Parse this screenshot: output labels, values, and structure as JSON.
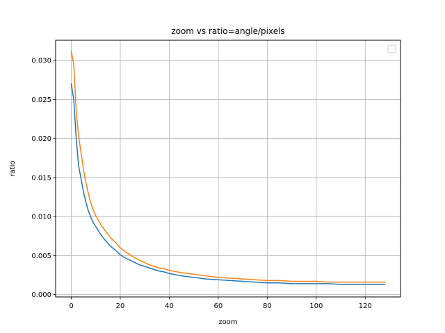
{
  "chart_data": {
    "type": "line",
    "title": "zoom vs ratio=angle/pixels",
    "xlabel": "zoom",
    "ylabel": "ratio",
    "xlim": [
      -6.4,
      134.4
    ],
    "ylim": [
      -0.0003,
      0.0326
    ],
    "x_ticks": [
      0,
      20,
      40,
      60,
      80,
      100,
      120
    ],
    "x_tick_labels": [
      "0",
      "20",
      "40",
      "60",
      "80",
      "100",
      "120"
    ],
    "y_ticks": [
      0.0,
      0.005,
      0.01,
      0.015,
      0.02,
      0.025,
      0.03
    ],
    "y_tick_labels": [
      "0.000",
      "0.005",
      "0.010",
      "0.015",
      "0.020",
      "0.025",
      "0.030"
    ],
    "grid": true,
    "legend": {
      "placement": "upper right",
      "entries": []
    },
    "series": [
      {
        "color": "#1f77b4",
        "x": [
          0,
          1,
          2,
          3,
          4,
          5,
          6,
          7,
          8,
          9,
          10,
          12,
          14,
          16,
          18,
          20,
          22,
          24,
          26,
          28,
          30,
          32,
          34,
          36,
          38,
          40,
          45,
          50,
          55,
          60,
          65,
          70,
          75,
          80,
          85,
          90,
          95,
          100,
          105,
          110,
          115,
          120,
          125,
          128
        ],
        "y": [
          0.027,
          0.025,
          0.02,
          0.0165,
          0.0148,
          0.0131,
          0.0118,
          0.0107,
          0.0099,
          0.0092,
          0.0087,
          0.0077,
          0.0069,
          0.0062,
          0.0057,
          0.0051,
          0.0047,
          0.0044,
          0.0041,
          0.0038,
          0.0036,
          0.0034,
          0.0032,
          0.003,
          0.0029,
          0.0027,
          0.0024,
          0.0022,
          0.002,
          0.0019,
          0.0018,
          0.0017,
          0.0016,
          0.0015,
          0.0015,
          0.0014,
          0.0014,
          0.0014,
          0.0014,
          0.0013,
          0.0013,
          0.0013,
          0.0013,
          0.0013
        ]
      },
      {
        "color": "#ff7f0e",
        "x": [
          0,
          1,
          2,
          3,
          4,
          5,
          6,
          7,
          8,
          9,
          10,
          12,
          14,
          16,
          18,
          20,
          22,
          24,
          26,
          28,
          30,
          32,
          34,
          36,
          38,
          40,
          45,
          50,
          55,
          60,
          65,
          70,
          75,
          80,
          85,
          90,
          95,
          100,
          105,
          110,
          115,
          120,
          125,
          128
        ],
        "y": [
          0.0312,
          0.0295,
          0.0235,
          0.0202,
          0.0182,
          0.0159,
          0.0143,
          0.0129,
          0.0117,
          0.0108,
          0.0101,
          0.009,
          0.0081,
          0.0073,
          0.0067,
          0.006,
          0.0055,
          0.0051,
          0.0047,
          0.0044,
          0.0041,
          0.0038,
          0.0036,
          0.0034,
          0.0033,
          0.0031,
          0.0028,
          0.0026,
          0.0024,
          0.0022,
          0.0021,
          0.002,
          0.0019,
          0.0018,
          0.0018,
          0.0017,
          0.0017,
          0.0017,
          0.0016,
          0.0016,
          0.0016,
          0.0016,
          0.0016,
          0.0016
        ]
      }
    ]
  }
}
